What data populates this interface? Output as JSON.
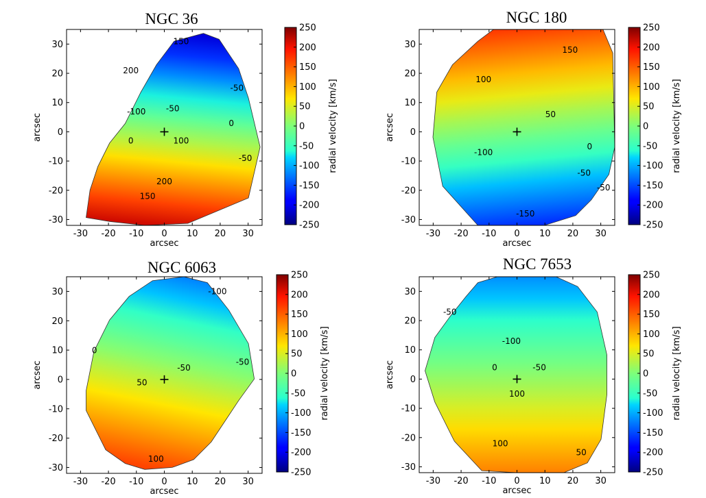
{
  "figure_title": "Radial velocity fields of four galaxies",
  "chart_data": [
    {
      "type": "heatmap",
      "title": "NGC 36",
      "xlabel": "arcsec",
      "ylabel": "arcsec",
      "xlim": [
        -35,
        35
      ],
      "ylim": [
        -32,
        35
      ],
      "xticks": [
        -30,
        -20,
        -10,
        0,
        10,
        20,
        30
      ],
      "yticks": [
        -30,
        -20,
        -10,
        0,
        10,
        20,
        30
      ],
      "colorbar": {
        "label": "radial velocity [km/s]",
        "vmin": -250,
        "vmax": 250,
        "ticks": [
          250,
          200,
          150,
          100,
          50,
          0,
          -50,
          -100,
          -150,
          -200,
          -250
        ]
      },
      "gradient_angle_deg": 95,
      "peak_values": {
        "approaching": -210,
        "receding": 215
      },
      "contour_labels": [
        {
          "text": "150",
          "x": 6,
          "y": 30
        },
        {
          "text": "200",
          "x": -12,
          "y": 20
        },
        {
          "text": "-100",
          "x": -10,
          "y": 6
        },
        {
          "text": "-50",
          "x": 3,
          "y": 7
        },
        {
          "text": "-50",
          "x": 26,
          "y": 14
        },
        {
          "text": "0",
          "x": -12,
          "y": -4
        },
        {
          "text": "0",
          "x": 24,
          "y": 2
        },
        {
          "text": "100",
          "x": 6,
          "y": -4
        },
        {
          "text": "200",
          "x": 0,
          "y": -18
        },
        {
          "text": "150",
          "x": -6,
          "y": -23
        },
        {
          "text": "-50",
          "x": 29,
          "y": -10
        }
      ]
    },
    {
      "type": "heatmap",
      "title": "NGC 180",
      "xlabel": "arcsec",
      "ylabel": "arcsec",
      "xlim": [
        -35,
        35
      ],
      "ylim": [
        -32,
        35
      ],
      "xticks": [
        -30,
        -20,
        -10,
        0,
        10,
        20,
        30
      ],
      "yticks": [
        -30,
        -20,
        -10,
        0,
        10,
        20,
        30
      ],
      "colorbar": {
        "label": "radial velocity [km/s]",
        "vmin": -250,
        "vmax": 250,
        "ticks": [
          250,
          200,
          150,
          100,
          50,
          0,
          -50,
          -100,
          -150,
          -200,
          -250
        ]
      },
      "gradient_angle_deg": -95,
      "peak_values": {
        "approaching": -165,
        "receding": 170
      },
      "contour_labels": [
        {
          "text": "150",
          "x": 19,
          "y": 27
        },
        {
          "text": "100",
          "x": -12,
          "y": 17
        },
        {
          "text": "50",
          "x": 12,
          "y": 5
        },
        {
          "text": "0",
          "x": 26,
          "y": -6
        },
        {
          "text": "-50",
          "x": 24,
          "y": -15
        },
        {
          "text": "-50",
          "x": 31,
          "y": -20
        },
        {
          "text": "-100",
          "x": -12,
          "y": -8
        },
        {
          "text": "-150",
          "x": 3,
          "y": -29
        }
      ]
    },
    {
      "type": "heatmap",
      "title": "NGC 6063",
      "xlabel": "arcsec",
      "ylabel": "arcsec",
      "xlim": [
        -35,
        35
      ],
      "ylim": [
        -32,
        35
      ],
      "xticks": [
        -30,
        -20,
        -10,
        0,
        10,
        20,
        30
      ],
      "yticks": [
        -30,
        -20,
        -10,
        0,
        10,
        20,
        30
      ],
      "colorbar": {
        "label": "radial velocity [km/s]",
        "vmin": -250,
        "vmax": 250,
        "ticks": [
          250,
          200,
          150,
          100,
          50,
          0,
          -50,
          -100,
          -150,
          -200,
          -250
        ]
      },
      "gradient_angle_deg": 100,
      "peak_values": {
        "approaching": -120,
        "receding": 165
      },
      "contour_labels": [
        {
          "text": "-100",
          "x": 19,
          "y": 29
        },
        {
          "text": "0",
          "x": -25,
          "y": 9
        },
        {
          "text": "-50",
          "x": 7,
          "y": 3
        },
        {
          "text": "-50",
          "x": 28,
          "y": 5
        },
        {
          "text": "50",
          "x": -8,
          "y": -2
        },
        {
          "text": "100",
          "x": -3,
          "y": -28
        }
      ]
    },
    {
      "type": "heatmap",
      "title": "NGC 7653",
      "xlabel": "arcsec",
      "ylabel": "arcsec",
      "xlim": [
        -35,
        35
      ],
      "ylim": [
        -32,
        35
      ],
      "xticks": [
        -30,
        -20,
        -10,
        0,
        10,
        20,
        30
      ],
      "yticks": [
        -30,
        -20,
        -10,
        0,
        10,
        20,
        30
      ],
      "colorbar": {
        "label": "radial velocity [km/s]",
        "vmin": -250,
        "vmax": 250,
        "ticks": [
          250,
          200,
          150,
          100,
          50,
          0,
          -50,
          -100,
          -150,
          -200,
          -250
        ]
      },
      "gradient_angle_deg": 90,
      "peak_values": {
        "approaching": -115,
        "receding": 130
      },
      "contour_labels": [
        {
          "text": "-50",
          "x": -24,
          "y": 22
        },
        {
          "text": "-100",
          "x": -2,
          "y": 12
        },
        {
          "text": "-50",
          "x": 8,
          "y": 3
        },
        {
          "text": "0",
          "x": -8,
          "y": 3
        },
        {
          "text": "100",
          "x": 0,
          "y": -6
        },
        {
          "text": "100",
          "x": -6,
          "y": -23
        },
        {
          "text": "50",
          "x": 23,
          "y": -26
        }
      ]
    }
  ]
}
